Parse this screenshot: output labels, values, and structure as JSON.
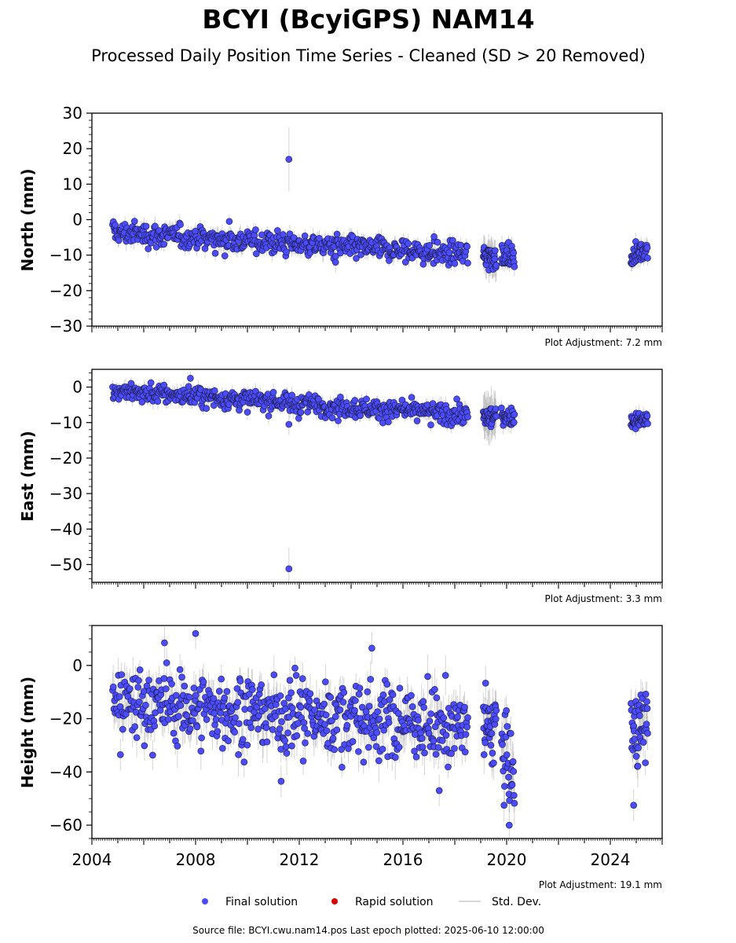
{
  "title": "BCYI (BcyiGPS) NAM14",
  "subtitle": "Processed Daily Position Time Series - Cleaned (SD > 20 Removed)",
  "source_line": "Source file: BCYI.cwu.nam14.pos  Last epoch plotted: 2025-06-10 12:00:00",
  "colors": {
    "final": "#4B4BFF",
    "rapid": "#DD0000",
    "std": "#888888",
    "marker_edge": "#1a1a33"
  },
  "legend": {
    "items": [
      {
        "label": "Final solution",
        "marker": "blue-dot"
      },
      {
        "label": "Rapid solution",
        "marker": "red-dot"
      },
      {
        "label": "Std. Dev.",
        "marker": "gray-line"
      }
    ]
  },
  "x_axis": {
    "range": [
      2004.0,
      2026.0
    ],
    "tick_labels": [
      "2004",
      "2008",
      "2012",
      "2016",
      "2020",
      "2024"
    ]
  },
  "chart_data": [
    {
      "type": "scatter",
      "name": "north",
      "ylabel": "North (mm)",
      "ylim": [
        -30,
        30
      ],
      "yticks": [
        30,
        20,
        10,
        0,
        -10,
        -20,
        -30
      ],
      "yticks_text": [
        "30",
        "20",
        "10",
        "0",
        "−10",
        "−20",
        "−30"
      ],
      "adjustment": "Plot Adjustment: 7.2 mm",
      "segments": [
        {
          "x": [
            2004.8,
            2018.5
          ],
          "y": [
            -3.5,
            -10.0
          ],
          "noise": 1.6,
          "sd": 2.0,
          "n": 520
        },
        {
          "x": [
            2019.1,
            2019.6
          ],
          "y": [
            -10.5,
            -10.0
          ],
          "noise": 1.8,
          "sd": 4.0,
          "n": 35
        },
        {
          "x": [
            2019.8,
            2020.3
          ],
          "y": [
            -10.5,
            -10.5
          ],
          "noise": 1.5,
          "sd": 2.0,
          "n": 30
        },
        {
          "x": [
            2024.8,
            2025.44
          ],
          "y": [
            -10.5,
            -8.0
          ],
          "noise": 1.3,
          "sd": 2.0,
          "n": 40
        }
      ],
      "outliers": [
        {
          "x": 2011.6,
          "y": 17.0,
          "sd": 9
        },
        {
          "x": 2009.3,
          "y": -0.5,
          "sd": 2
        },
        {
          "x": 2013.4,
          "y": -12.0,
          "sd": 3
        },
        {
          "x": 2017.2,
          "y": -4.8,
          "sd": 2
        },
        {
          "x": 2004.9,
          "y": -1.5,
          "sd": 2
        }
      ]
    },
    {
      "type": "scatter",
      "name": "east",
      "ylabel": "East (mm)",
      "ylim": [
        -55,
        5
      ],
      "yticks": [
        0,
        -10,
        -20,
        -30,
        -40,
        -50
      ],
      "yticks_text": [
        "0",
        "−10",
        "−20",
        "−30",
        "−40",
        "−50"
      ],
      "adjustment": "Plot Adjustment: 3.3 mm",
      "segments": [
        {
          "x": [
            2004.8,
            2018.5
          ],
          "y": [
            -1.0,
            -8.0
          ],
          "noise": 1.4,
          "sd": 1.8,
          "n": 520
        },
        {
          "x": [
            2019.1,
            2019.6
          ],
          "y": [
            -8.5,
            -8.5
          ],
          "noise": 1.6,
          "sd": 5.0,
          "n": 35
        },
        {
          "x": [
            2019.8,
            2020.3
          ],
          "y": [
            -8.0,
            -8.5
          ],
          "noise": 1.2,
          "sd": 2.0,
          "n": 30
        },
        {
          "x": [
            2024.8,
            2025.44
          ],
          "y": [
            -9.5,
            -9.0
          ],
          "noise": 1.0,
          "sd": 1.8,
          "n": 40
        }
      ],
      "outliers": [
        {
          "x": 2011.6,
          "y": -51.2,
          "sd": 6
        },
        {
          "x": 2011.6,
          "y": -10.5,
          "sd": 3
        },
        {
          "x": 2007.8,
          "y": 2.5,
          "sd": 2
        },
        {
          "x": 2013.5,
          "y": -9.5,
          "sd": 2
        }
      ]
    },
    {
      "type": "scatter",
      "name": "height",
      "ylabel": "Height (mm)",
      "ylim": [
        -65,
        15
      ],
      "yticks": [
        0,
        -20,
        -40,
        -60
      ],
      "yticks_text": [
        "0",
        "−20",
        "−40",
        "−60"
      ],
      "adjustment": "Plot Adjustment: 19.1 mm",
      "segments": [
        {
          "x": [
            2004.8,
            2018.5
          ],
          "y": [
            -14.0,
            -23.0
          ],
          "noise": 7.0,
          "sd": 6.0,
          "n": 560
        },
        {
          "x": [
            2019.1,
            2019.6
          ],
          "y": [
            -24.0,
            -22.0
          ],
          "noise": 7.5,
          "sd": 6.0,
          "n": 35
        },
        {
          "x": [
            2019.8,
            2020.3
          ],
          "y": [
            -28.0,
            -42.0
          ],
          "noise": 7.0,
          "sd": 6.0,
          "n": 30
        },
        {
          "x": [
            2024.8,
            2025.44
          ],
          "y": [
            -25.0,
            -22.0
          ],
          "noise": 6.5,
          "sd": 6.0,
          "n": 45
        }
      ],
      "outliers": [
        {
          "x": 2006.8,
          "y": 8.5,
          "sd": 6
        },
        {
          "x": 2008.0,
          "y": 12.0,
          "sd": 6
        },
        {
          "x": 2014.8,
          "y": 6.5,
          "sd": 6
        },
        {
          "x": 2011.3,
          "y": -43.5,
          "sd": 6
        },
        {
          "x": 2017.4,
          "y": -47.0,
          "sd": 6
        },
        {
          "x": 2020.1,
          "y": -60.0,
          "sd": 6
        },
        {
          "x": 2019.9,
          "y": -52.5,
          "sd": 6
        },
        {
          "x": 2024.9,
          "y": -52.5,
          "sd": 6
        },
        {
          "x": 2005.1,
          "y": -33.5,
          "sd": 6
        }
      ]
    }
  ]
}
